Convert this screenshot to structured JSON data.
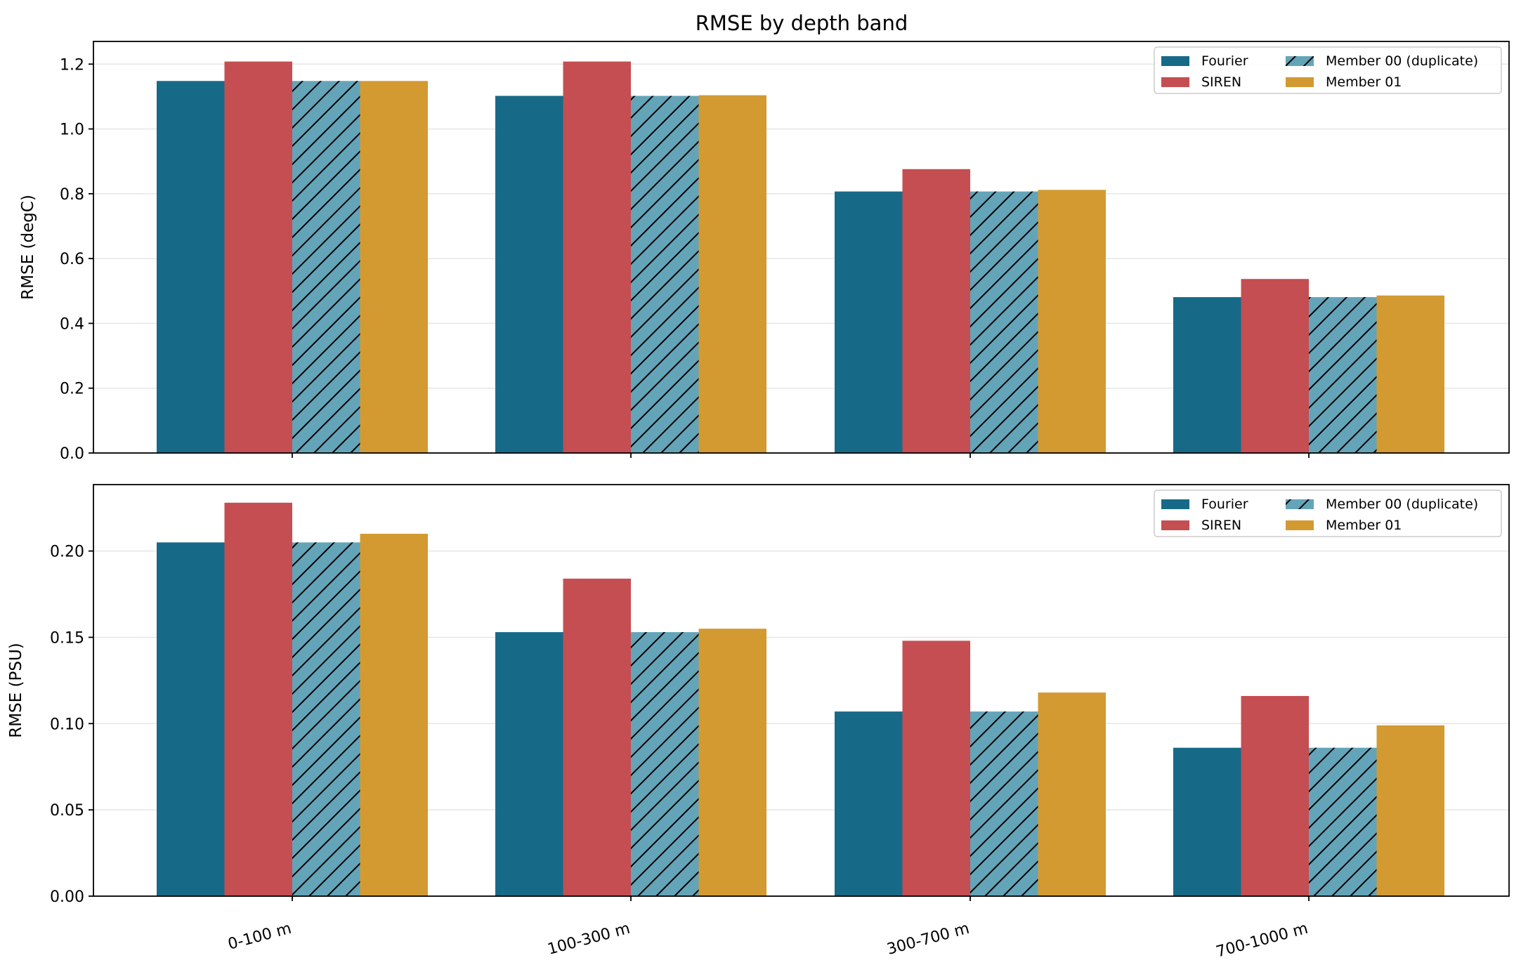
{
  "figure_title": "RMSE by depth band",
  "colors": {
    "Fourier": "#176a87",
    "SIREN": "#c44e52",
    "Member 00 (duplicate)": "#64a4b8",
    "Member 01": "#d39a32",
    "grid": "#e6e6e6",
    "axis": "#000000"
  },
  "chart_data": [
    {
      "type": "bar",
      "ylabel": "RMSE (degC)",
      "ylim": [
        0,
        1.27
      ],
      "yticks": [
        0.0,
        0.2,
        0.4,
        0.6,
        0.8,
        1.0,
        1.2
      ],
      "ytick_labels": [
        "0.0",
        "0.2",
        "0.4",
        "0.6",
        "0.8",
        "1.0",
        "1.2"
      ],
      "categories": [
        "0-100 m",
        "100-300 m",
        "300-700 m",
        "700-1000 m"
      ],
      "show_xtick_labels": false,
      "grid": "y",
      "legend": "top-right",
      "series": [
        {
          "name": "Fourier",
          "values": [
            1.148,
            1.102,
            0.807,
            0.481
          ]
        },
        {
          "name": "SIREN",
          "values": [
            1.208,
            1.208,
            0.876,
            0.537
          ]
        },
        {
          "name": "Member 00 (duplicate)",
          "values": [
            1.148,
            1.102,
            0.807,
            0.481
          ],
          "hatch": true
        },
        {
          "name": "Member 01",
          "values": [
            1.148,
            1.104,
            0.812,
            0.486
          ]
        }
      ]
    },
    {
      "type": "bar",
      "ylabel": "RMSE (PSU)",
      "ylim": [
        0,
        0.2385
      ],
      "yticks": [
        0.0,
        0.05,
        0.1,
        0.15,
        0.2
      ],
      "ytick_labels": [
        "0.00",
        "0.05",
        "0.10",
        "0.15",
        "0.20"
      ],
      "categories": [
        "0-100 m",
        "100-300 m",
        "300-700 m",
        "700-1000 m"
      ],
      "show_xtick_labels": true,
      "grid": "y",
      "legend": "top-right",
      "series": [
        {
          "name": "Fourier",
          "values": [
            0.205,
            0.153,
            0.107,
            0.086
          ]
        },
        {
          "name": "SIREN",
          "values": [
            0.228,
            0.184,
            0.148,
            0.116
          ]
        },
        {
          "name": "Member 00 (duplicate)",
          "values": [
            0.205,
            0.153,
            0.107,
            0.086
          ],
          "hatch": true
        },
        {
          "name": "Member 01",
          "values": [
            0.21,
            0.155,
            0.118,
            0.099
          ]
        }
      ]
    }
  ]
}
